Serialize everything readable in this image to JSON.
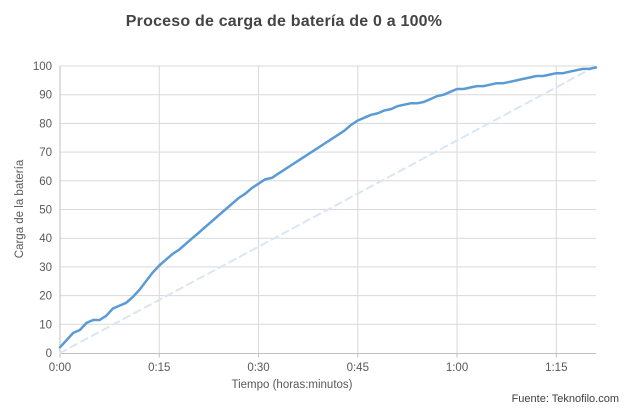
{
  "chart_data": {
    "type": "line",
    "title": "Proceso de carga de batería de 0 a 100%",
    "xlabel": "Tiempo (horas:minutos)",
    "ylabel": "Carga de la batería",
    "source": "Fuente: Teknofilo.com",
    "xlim_minutes": [
      0,
      81
    ],
    "ylim": [
      0,
      100
    ],
    "x_ticks": [
      {
        "minutes": 0,
        "label": "0:00"
      },
      {
        "minutes": 15,
        "label": "0:15"
      },
      {
        "minutes": 30,
        "label": "0:30"
      },
      {
        "minutes": 45,
        "label": "0:45"
      },
      {
        "minutes": 60,
        "label": "1:00"
      },
      {
        "minutes": 75,
        "label": "1:15"
      }
    ],
    "y_ticks": [
      0,
      10,
      20,
      30,
      40,
      50,
      60,
      70,
      80,
      90,
      100
    ],
    "grid": true,
    "legend": "none",
    "series": [
      {
        "id": "battery-charge",
        "style": "solid",
        "color": "#5B9BD5",
        "width": 2.5,
        "points_minutes_percent": [
          [
            0,
            2
          ],
          [
            1,
            4.5
          ],
          [
            2,
            7
          ],
          [
            3,
            8
          ],
          [
            4,
            10.5
          ],
          [
            5,
            11.5
          ],
          [
            6,
            11.5
          ],
          [
            7,
            13
          ],
          [
            8,
            15.5
          ],
          [
            9,
            16.5
          ],
          [
            10,
            17.5
          ],
          [
            11,
            19.5
          ],
          [
            12,
            22
          ],
          [
            13,
            25
          ],
          [
            14,
            28
          ],
          [
            15,
            30.5
          ],
          [
            16,
            32.5
          ],
          [
            17,
            34.5
          ],
          [
            18,
            36
          ],
          [
            19,
            38
          ],
          [
            20,
            40
          ],
          [
            21,
            42
          ],
          [
            22,
            44
          ],
          [
            23,
            46
          ],
          [
            24,
            48
          ],
          [
            25,
            50
          ],
          [
            26,
            52
          ],
          [
            27,
            54
          ],
          [
            28,
            55.5
          ],
          [
            29,
            57.5
          ],
          [
            30,
            59
          ],
          [
            31,
            60.5
          ],
          [
            32,
            61
          ],
          [
            33,
            62.5
          ],
          [
            34,
            64
          ],
          [
            35,
            65.5
          ],
          [
            36,
            67
          ],
          [
            37,
            68.5
          ],
          [
            38,
            70
          ],
          [
            39,
            71.5
          ],
          [
            40,
            73
          ],
          [
            41,
            74.5
          ],
          [
            42,
            76
          ],
          [
            43,
            77.5
          ],
          [
            44,
            79.5
          ],
          [
            45,
            81
          ],
          [
            46,
            82
          ],
          [
            47,
            83
          ],
          [
            48,
            83.5
          ],
          [
            49,
            84.5
          ],
          [
            50,
            85
          ],
          [
            51,
            86
          ],
          [
            52,
            86.5
          ],
          [
            53,
            87
          ],
          [
            54,
            87
          ],
          [
            55,
            87.5
          ],
          [
            56,
            88.5
          ],
          [
            57,
            89.5
          ],
          [
            58,
            90
          ],
          [
            59,
            91
          ],
          [
            60,
            92
          ],
          [
            61,
            92
          ],
          [
            62,
            92.5
          ],
          [
            63,
            93
          ],
          [
            64,
            93
          ],
          [
            65,
            93.5
          ],
          [
            66,
            94
          ],
          [
            67,
            94
          ],
          [
            68,
            94.5
          ],
          [
            69,
            95
          ],
          [
            70,
            95.5
          ],
          [
            71,
            96
          ],
          [
            72,
            96.5
          ],
          [
            73,
            96.5
          ],
          [
            74,
            97
          ],
          [
            75,
            97.5
          ],
          [
            76,
            97.5
          ],
          [
            77,
            98
          ],
          [
            78,
            98.5
          ],
          [
            79,
            99
          ],
          [
            80,
            99
          ],
          [
            81,
            99.5
          ]
        ]
      },
      {
        "id": "linear-reference",
        "style": "dashed",
        "color": "#D9E6F4",
        "width": 2,
        "points_minutes_percent": [
          [
            0,
            0
          ],
          [
            81,
            100
          ]
        ]
      }
    ],
    "colors": {
      "gridline": "#D9D9D9",
      "axis_line": "#BFBFBF",
      "tick_text": "#595959",
      "title_text": "#444444",
      "source_text": "#3F3F3F",
      "background": "#FFFFFF"
    }
  }
}
